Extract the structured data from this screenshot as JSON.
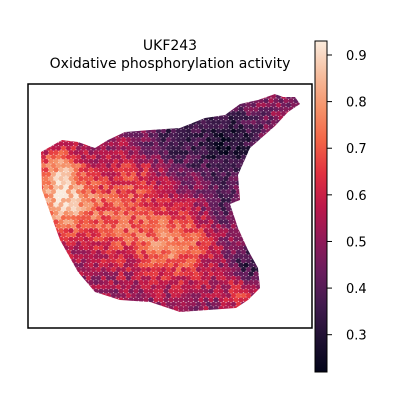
{
  "chart_data": {
    "type": "scatter",
    "title": "UKF243",
    "subtitle": "Oxidative phosphorylation activity",
    "xlabel": "",
    "ylabel": "",
    "grid": false,
    "legend": "none",
    "colorbar": {
      "colormap": "rocket",
      "vmin": 0.22,
      "vmax": 0.93,
      "ticks": [
        0.3,
        0.4,
        0.5,
        0.6,
        0.7,
        0.8,
        0.9
      ],
      "tick_labels": [
        "0.3",
        "0.4",
        "0.5",
        "0.6",
        "0.7",
        "0.8",
        "0.9"
      ]
    },
    "colors": {
      "axes": "#000000",
      "background": "#ffffff"
    }
  }
}
